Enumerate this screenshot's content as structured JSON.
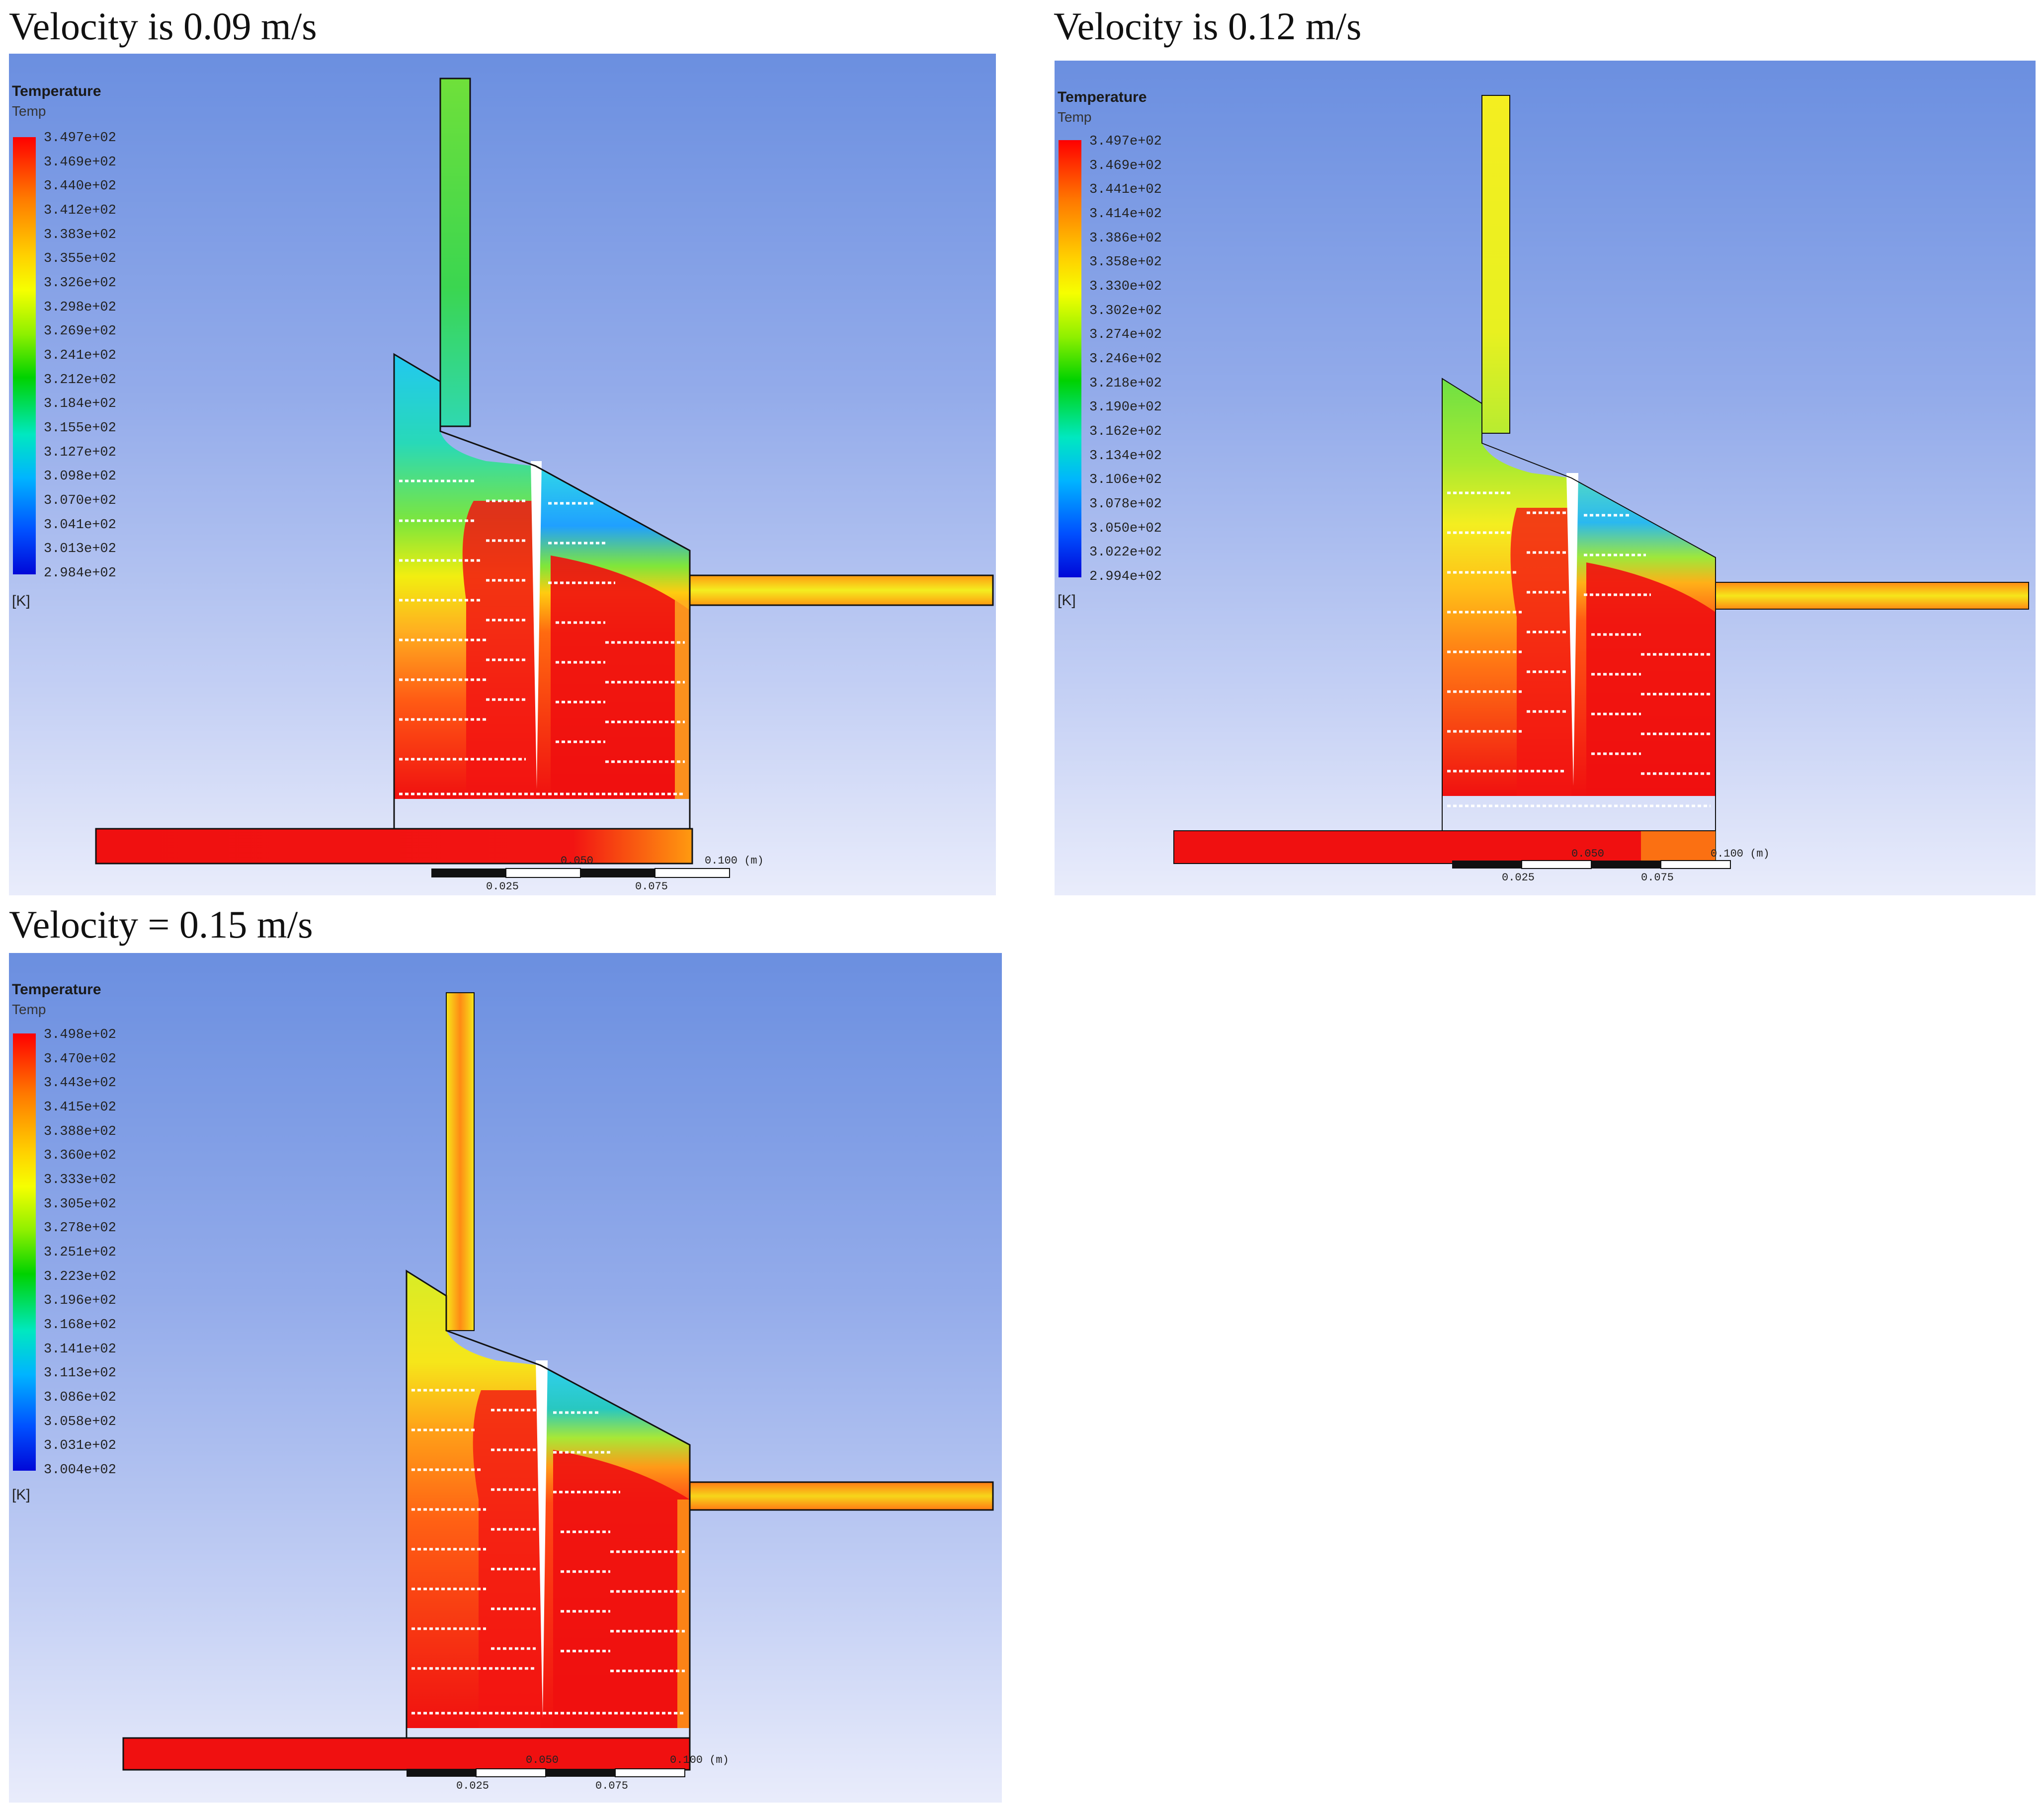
{
  "panels": [
    {
      "caption": "Velocity is 0.09 m/s",
      "legend": {
        "title": "Temperature",
        "subtitle": "Temp",
        "unit": "[K]",
        "values": [
          "3.497e+02",
          "3.469e+02",
          "3.440e+02",
          "3.412e+02",
          "3.383e+02",
          "3.355e+02",
          "3.326e+02",
          "3.298e+02",
          "3.269e+02",
          "3.241e+02",
          "3.212e+02",
          "3.184e+02",
          "3.155e+02",
          "3.127e+02",
          "3.098e+02",
          "3.070e+02",
          "3.041e+02",
          "3.013e+02",
          "2.984e+02"
        ]
      },
      "scale": {
        "label_mid": "0.050",
        "label_end": "0.100 (m)",
        "label_left": "0.025",
        "label_right": "0.075"
      }
    },
    {
      "caption": "Velocity is 0.12 m/s",
      "legend": {
        "title": "Temperature",
        "subtitle": "Temp",
        "unit": "[K]",
        "values": [
          "3.497e+02",
          "3.469e+02",
          "3.441e+02",
          "3.414e+02",
          "3.386e+02",
          "3.358e+02",
          "3.330e+02",
          "3.302e+02",
          "3.274e+02",
          "3.246e+02",
          "3.218e+02",
          "3.190e+02",
          "3.162e+02",
          "3.134e+02",
          "3.106e+02",
          "3.078e+02",
          "3.050e+02",
          "3.022e+02",
          "2.994e+02"
        ]
      },
      "scale": {
        "label_mid": "0.050",
        "label_end": "0.100 (m)",
        "label_left": "0.025",
        "label_right": "0.075"
      }
    },
    {
      "caption": "Velocity = 0.15 m/s",
      "legend": {
        "title": "Temperature",
        "subtitle": "Temp",
        "unit": "[K]",
        "values": [
          "3.498e+02",
          "3.470e+02",
          "3.443e+02",
          "3.415e+02",
          "3.388e+02",
          "3.360e+02",
          "3.333e+02",
          "3.305e+02",
          "3.278e+02",
          "3.251e+02",
          "3.223e+02",
          "3.196e+02",
          "3.168e+02",
          "3.141e+02",
          "3.113e+02",
          "3.086e+02",
          "3.058e+02",
          "3.031e+02",
          "3.004e+02"
        ]
      },
      "scale": {
        "label_mid": "0.050",
        "label_end": "0.100 (m)",
        "label_left": "0.025",
        "label_right": "0.075"
      }
    }
  ],
  "colors": {
    "hot": "#f01010",
    "warm": "#ff8a1a",
    "yellow": "#f8f000",
    "green": "#3ad64a",
    "cyan": "#30d8e8",
    "blue": "#2a6cff"
  }
}
